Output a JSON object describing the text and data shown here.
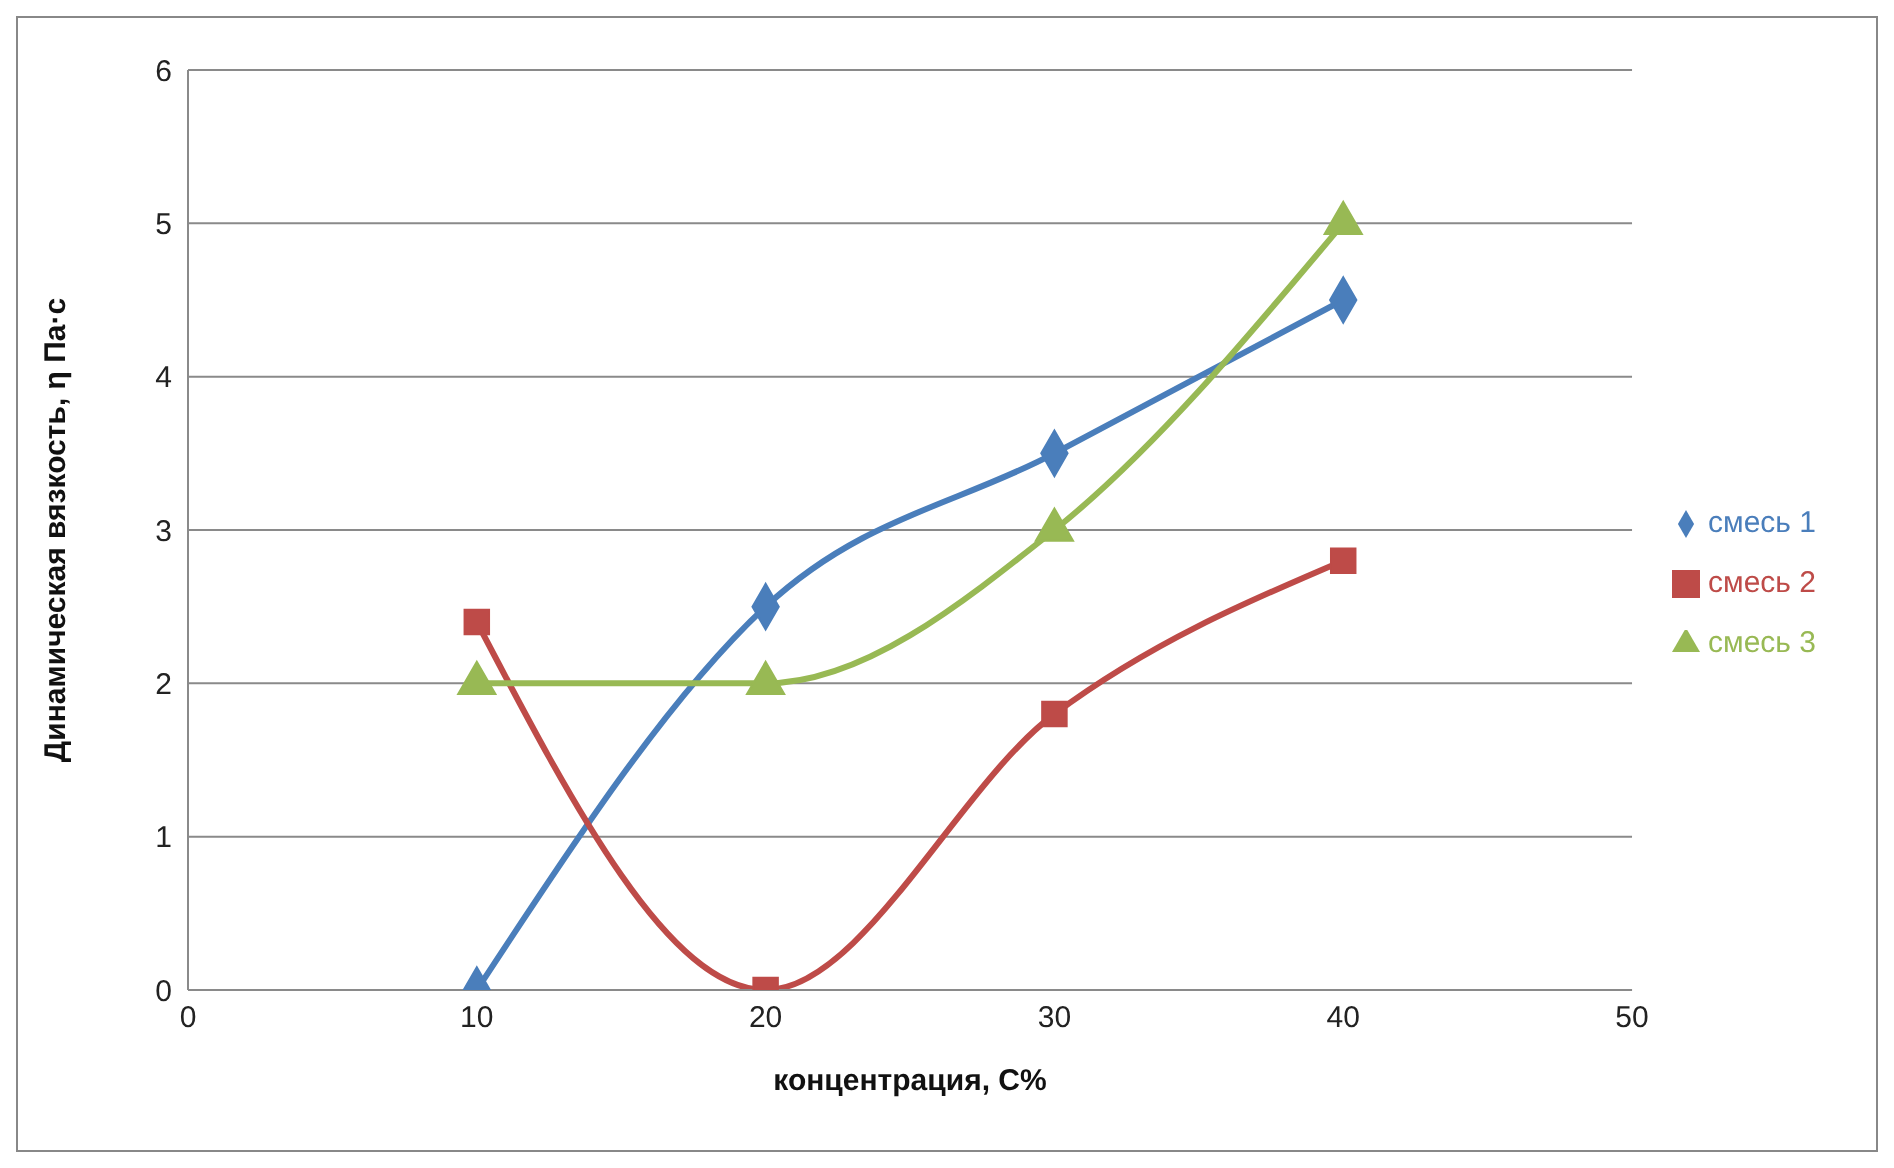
{
  "chart_data": {
    "type": "line",
    "xlabel": "концентрация, С%",
    "ylabel": "Динамическая вязкость, η Па·с",
    "x": [
      10,
      20,
      30,
      40
    ],
    "series": [
      {
        "name": "смесь 1",
        "color": "#4a7ebb",
        "marker": "diamond",
        "values": [
          0,
          2.5,
          3.5,
          4.5
        ]
      },
      {
        "name": "смесь 2",
        "color": "#be4b48",
        "marker": "square",
        "values": [
          2.4,
          0,
          1.8,
          2.8
        ]
      },
      {
        "name": "смесь 3",
        "color": "#98b954",
        "marker": "triangle",
        "values": [
          2,
          2,
          3,
          5
        ]
      }
    ],
    "xlim": [
      0,
      50
    ],
    "xticks": [
      0,
      10,
      20,
      30,
      40,
      50
    ],
    "ylim": [
      0,
      6
    ],
    "yticks": [
      0,
      1,
      2,
      3,
      4,
      5,
      6
    ],
    "grid": "y",
    "legend": "right",
    "line_style": "solid"
  }
}
